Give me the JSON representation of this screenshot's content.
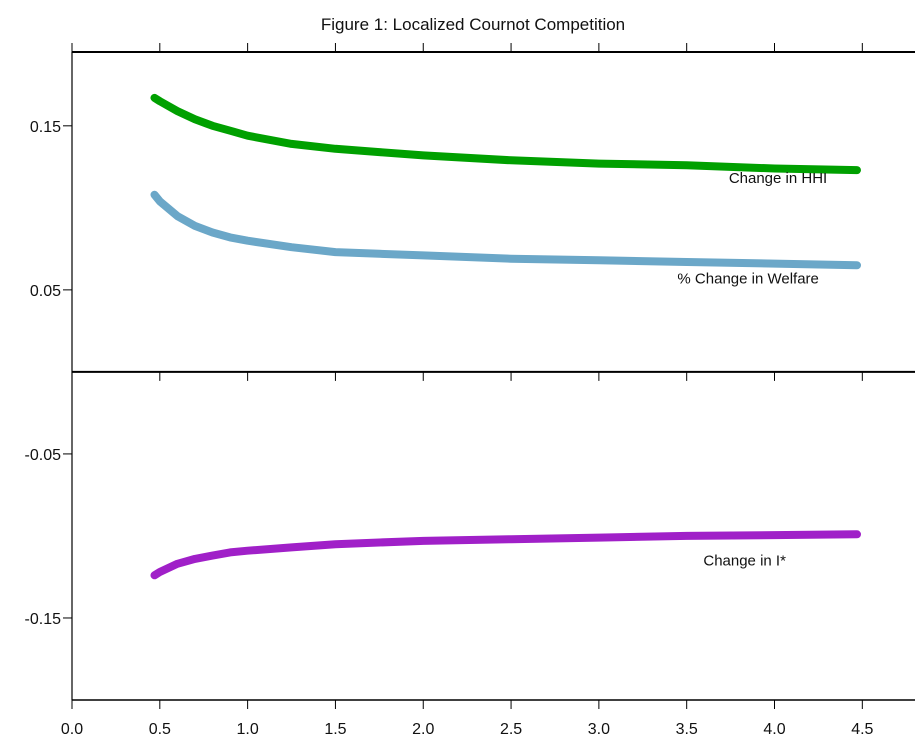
{
  "chart_data": {
    "type": "line",
    "title": "Figure 1: Localized Cournot Competition",
    "xlabel": "",
    "ylabel": "",
    "xlim": [
      0.0,
      4.8
    ],
    "ylim": [
      -0.2,
      0.195
    ],
    "zero_line": 0,
    "grid": false,
    "legend": "none",
    "x_ticks": [
      0.0,
      0.5,
      1.0,
      1.5,
      2.0,
      2.5,
      3.0,
      3.5,
      4.0,
      4.5
    ],
    "x_tick_labels": [
      "0.0",
      "0.5",
      "1.0",
      "1.5",
      "2.0",
      "2.5",
      "3.0",
      "3.5",
      "4.0",
      "4.5"
    ],
    "y_ticks": [
      0.15,
      0.05,
      -0.05,
      -0.15
    ],
    "y_tick_labels": [
      "0.15",
      "0.05",
      "-0.05",
      "-0.15"
    ],
    "series": [
      {
        "color": "#00a000",
        "x": [
          0.47,
          0.5,
          0.6,
          0.7,
          0.8,
          0.9,
          1.0,
          1.25,
          1.5,
          1.75,
          2.0,
          2.5,
          3.0,
          3.5,
          4.0,
          4.47
        ],
        "y": [
          0.167,
          0.165,
          0.159,
          0.154,
          0.15,
          0.147,
          0.144,
          0.139,
          0.136,
          0.134,
          0.132,
          0.129,
          0.127,
          0.126,
          0.124,
          0.123
        ]
      },
      {
        "color": "#6ba7c8",
        "x": [
          0.47,
          0.5,
          0.6,
          0.7,
          0.8,
          0.9,
          1.0,
          1.25,
          1.5,
          1.75,
          2.0,
          2.5,
          3.0,
          3.5,
          4.0,
          4.47
        ],
        "y": [
          0.108,
          0.104,
          0.095,
          0.089,
          0.085,
          0.082,
          0.08,
          0.076,
          0.073,
          0.072,
          0.071,
          0.069,
          0.068,
          0.067,
          0.066,
          0.065
        ]
      },
      {
        "color": "#a020c8",
        "x": [
          0.47,
          0.5,
          0.6,
          0.7,
          0.8,
          0.9,
          1.0,
          1.25,
          1.5,
          1.75,
          2.0,
          2.5,
          3.0,
          3.5,
          4.0,
          4.47
        ],
        "y": [
          -0.124,
          -0.122,
          -0.117,
          -0.114,
          -0.112,
          -0.11,
          -0.109,
          -0.107,
          -0.105,
          -0.104,
          -0.103,
          -0.102,
          -0.101,
          -0.1,
          -0.0995,
          -0.099
        ]
      }
    ],
    "annotations": [
      {
        "text": "Change in HHI",
        "x": 4.02,
        "y": 0.115
      },
      {
        "text": "% Change in Welfare",
        "x": 3.85,
        "y": 0.054
      },
      {
        "text": "Change in I*",
        "x": 3.83,
        "y": -0.118
      }
    ]
  }
}
